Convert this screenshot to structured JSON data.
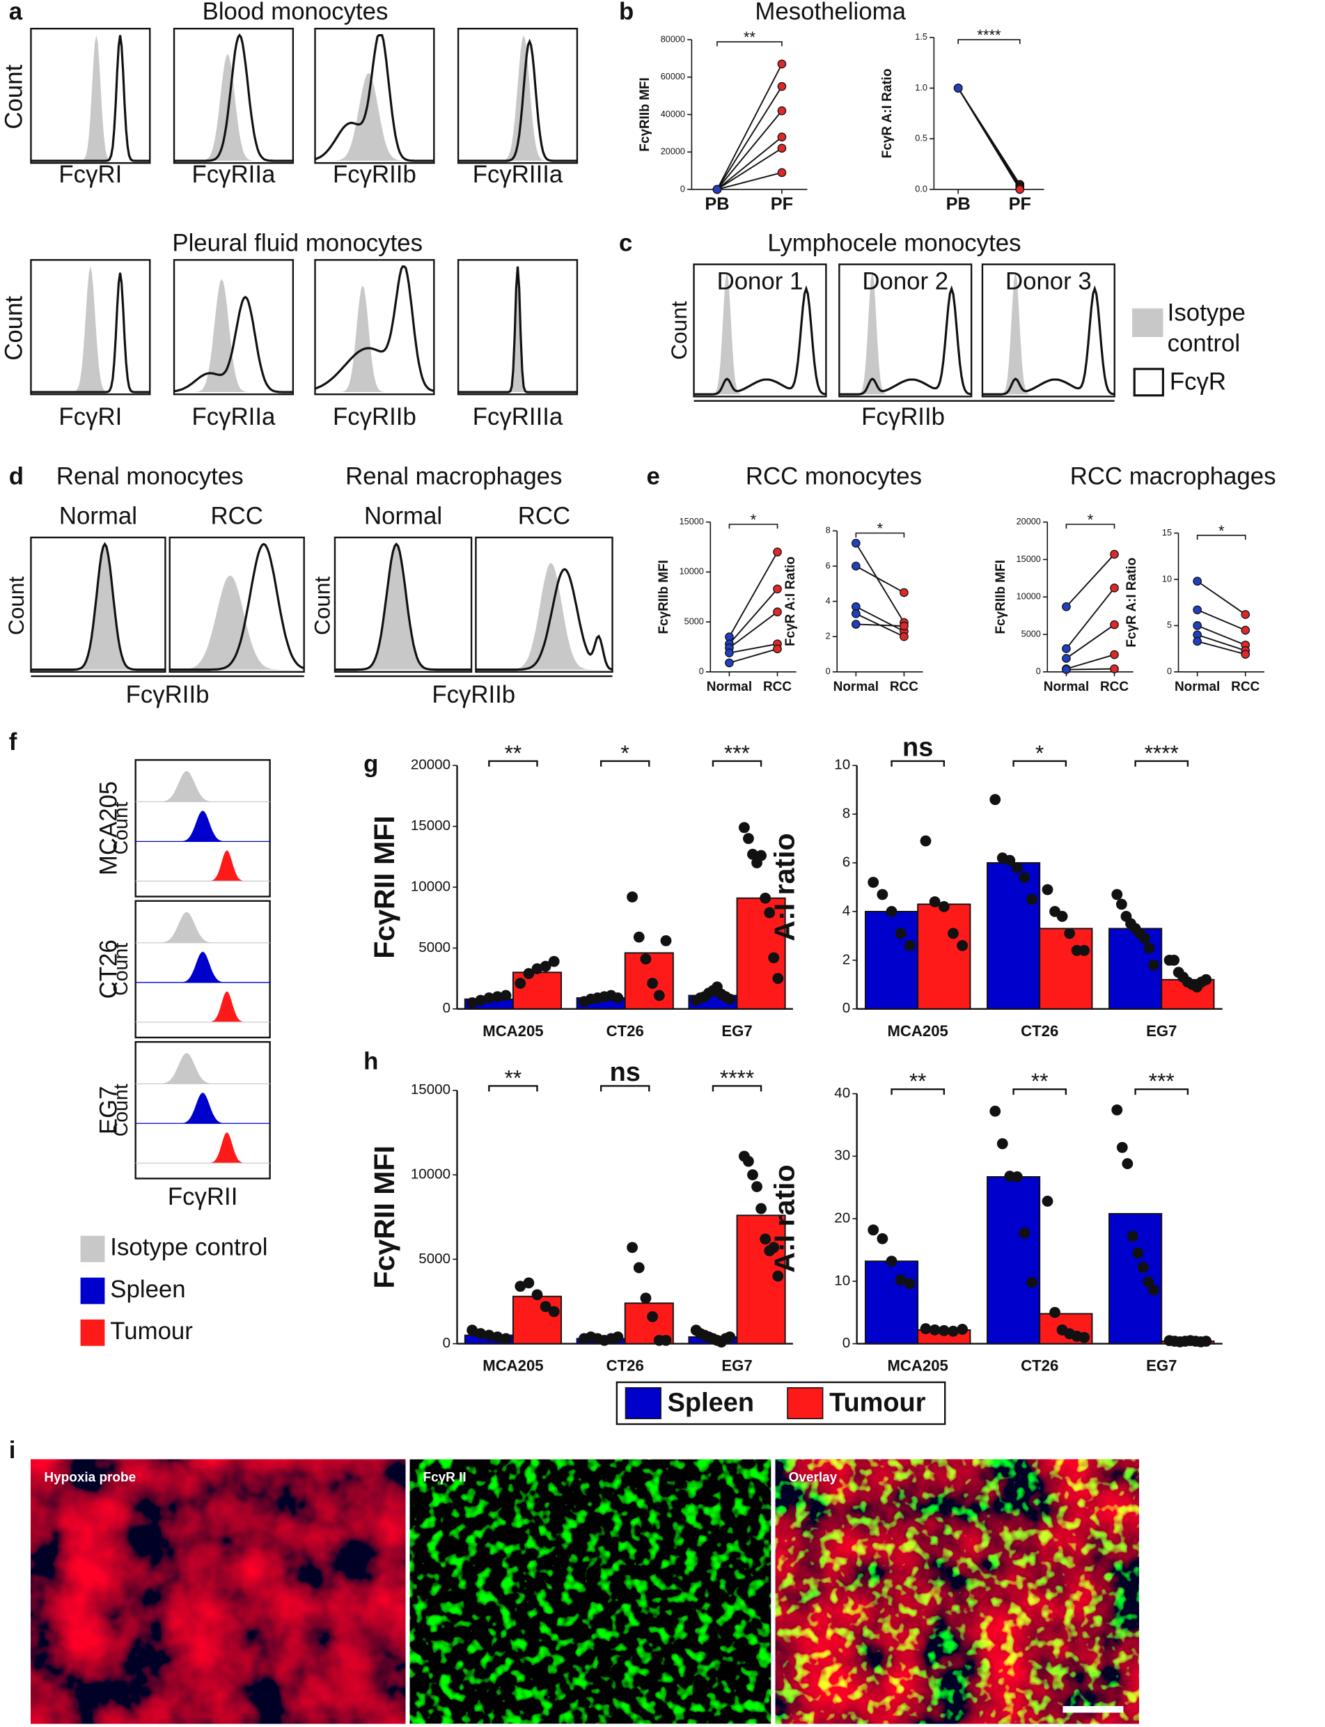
{
  "panel_labels": [
    "a",
    "b",
    "c",
    "d",
    "e",
    "f",
    "g",
    "h",
    "i"
  ],
  "a": {
    "titles": [
      "Blood monocytes",
      "Pleural fluid monocytes"
    ],
    "y_label": "Count",
    "markers": [
      "FcγRI",
      "FcγRIIa",
      "FcγRIIb",
      "FcγRIIIa"
    ]
  },
  "b": {
    "title": "Mesothelioma"
  },
  "c": {
    "title": "Lymphocele monocytes",
    "donors": [
      "Donor 1",
      "Donor 2",
      "Donor 3"
    ],
    "y_label": "Count",
    "x_label": "FcγRIIb",
    "legend": [
      "Isotype control",
      "FcγR"
    ]
  },
  "d": {
    "groups": [
      {
        "title": "Renal monocytes",
        "conditions": [
          "Normal",
          "RCC"
        ]
      },
      {
        "title": "Renal macrophages",
        "conditions": [
          "Normal",
          "RCC"
        ]
      }
    ],
    "y_label": "Count",
    "x_label": "FcγRIIb"
  },
  "e": {
    "titles": [
      "RCC monocytes",
      "RCC macrophages"
    ]
  },
  "f": {
    "models": [
      "MCA205",
      "CT26",
      "EG7"
    ],
    "y_label": "Count",
    "x_label": "FcγRII",
    "legend": [
      {
        "name": "Isotype control",
        "color": "#c8c8c8"
      },
      {
        "name": "Spleen",
        "color": "#0000cc"
      },
      {
        "name": "Tumour",
        "color": "#ff1a1a"
      }
    ]
  },
  "gh_legend": [
    {
      "name": "Spleen",
      "color": "#0000cc"
    },
    {
      "name": "Tumour",
      "color": "#ff1a1a"
    }
  ],
  "i": {
    "labels": [
      "Hypoxia probe",
      "FcγR II",
      "Overlay"
    ]
  },
  "chart_data": [
    {
      "type": "paired",
      "y_label": "FcγRIIb MFI",
      "categories": [
        "PB",
        "PF"
      ],
      "point_colors": [
        "#2040c0",
        "#e02828"
      ],
      "significance": "**",
      "ylim": [
        0,
        80000
      ],
      "yticks": [
        0,
        20000,
        40000,
        60000,
        80000
      ],
      "series": [
        {
          "values": [
            0,
            67000
          ]
        },
        {
          "values": [
            0,
            55000
          ]
        },
        {
          "values": [
            0,
            42000
          ]
        },
        {
          "values": [
            0,
            28000
          ]
        },
        {
          "values": [
            0,
            22000
          ]
        },
        {
          "values": [
            0,
            9000
          ]
        }
      ]
    },
    {
      "type": "paired",
      "y_label": "FcγR A:I Ratio",
      "categories": [
        "PB",
        "PF"
      ],
      "point_colors": [
        "#2040c0",
        "#e02828"
      ],
      "significance": "****",
      "ylim": [
        0,
        1.5
      ],
      "yticks": [
        {
          "value": 0,
          "label": "0.0"
        },
        0.5,
        {
          "value": 1,
          "label": "1.0"
        },
        1.5
      ],
      "series": [
        {
          "values": [
            1,
            0.05
          ]
        },
        {
          "values": [
            1,
            0.04
          ]
        },
        {
          "values": [
            1,
            0.03
          ]
        },
        {
          "values": [
            1,
            0.02
          ]
        },
        {
          "values": [
            1,
            0.01
          ]
        },
        {
          "values": [
            1,
            0
          ]
        }
      ]
    },
    {
      "type": "paired",
      "y_label": "FcγRIIb MFI",
      "categories": [
        "Normal",
        "RCC"
      ],
      "point_colors": [
        "#2040c0",
        "#e02828"
      ],
      "significance": "*",
      "ylim": [
        0,
        15000
      ],
      "yticks": [
        0,
        5000,
        10000,
        15000
      ],
      "series": [
        {
          "values": [
            3500,
            12000
          ]
        },
        {
          "values": [
            2800,
            8300
          ]
        },
        {
          "values": [
            2400,
            6000
          ]
        },
        {
          "values": [
            1900,
            2800
          ]
        },
        {
          "values": [
            900,
            2300
          ]
        }
      ]
    },
    {
      "type": "paired",
      "y_label": "FcγR A:I Ratio",
      "categories": [
        "Normal",
        "RCC"
      ],
      "point_colors": [
        "#2040c0",
        "#e02828"
      ],
      "significance": "*",
      "ylim": [
        0,
        8
      ],
      "yticks": [
        0,
        2,
        4,
        6,
        8
      ],
      "series": [
        {
          "values": [
            7.3,
            2.8
          ]
        },
        {
          "values": [
            6.0,
            4.5
          ]
        },
        {
          "values": [
            3.7,
            2.3
          ]
        },
        {
          "values": [
            3.3,
            2.0
          ]
        },
        {
          "values": [
            2.7,
            2.6
          ]
        }
      ]
    },
    {
      "type": "paired",
      "y_label": "FcγRIIb MFI",
      "categories": [
        "Normal",
        "RCC"
      ],
      "point_colors": [
        "#2040c0",
        "#e02828"
      ],
      "significance": "*",
      "ylim": [
        0,
        20000
      ],
      "yticks": [
        0,
        5000,
        10000,
        15000,
        20000
      ],
      "series": [
        {
          "values": [
            8700,
            15700
          ]
        },
        {
          "values": [
            3100,
            11200
          ]
        },
        {
          "values": [
            1800,
            6300
          ]
        },
        {
          "values": [
            400,
            2300
          ]
        },
        {
          "values": [
            300,
            400
          ]
        }
      ]
    },
    {
      "type": "paired",
      "y_label": "FcγR A:I Ratio",
      "categories": [
        "Normal",
        "RCC"
      ],
      "point_colors": [
        "#2040c0",
        "#e02828"
      ],
      "significance": "*",
      "ylim": [
        0,
        15
      ],
      "yticks": [
        0,
        5,
        10,
        15
      ],
      "series": [
        {
          "values": [
            9.8,
            6.2
          ]
        },
        {
          "values": [
            6.7,
            4.5
          ]
        },
        {
          "values": [
            5.0,
            2.9
          ]
        },
        {
          "values": [
            4.0,
            2.3
          ]
        },
        {
          "values": [
            3.3,
            1.9
          ]
        }
      ]
    },
    {
      "type": "bar_dots",
      "y_label": "FcγRII MFI",
      "categories": [
        "MCA205",
        "CT26",
        "EG7"
      ],
      "significance": [
        "**",
        "*",
        "***"
      ],
      "ylim": [
        0,
        20000
      ],
      "yticks": [
        0,
        5000,
        10000,
        15000,
        20000
      ],
      "series": [
        {
          "name": "Spleen",
          "color": "#0000cc",
          "values": [
            800,
            900,
            1100
          ],
          "points": [
            [
              500,
              700,
              900,
              1000,
              1100
            ],
            [
              600,
              800,
              900,
              1000,
              1100,
              900
            ],
            [
              700,
              900,
              1000,
              1300,
              1500,
              1800,
              1200,
              1000,
              800
            ]
          ]
        },
        {
          "name": "Tumour",
          "color": "#ff1a1a",
          "values": [
            3000,
            4600,
            9100
          ],
          "points": [
            [
              2100,
              2900,
              3300,
              3500,
              3900
            ],
            [
              9200,
              5900,
              4100,
              2100,
              1100,
              5600
            ],
            [
              14900,
              14000,
              12700,
              12000,
              12600,
              9100,
              7900,
              4200,
              2500
            ]
          ]
        }
      ]
    },
    {
      "type": "bar_dots",
      "y_label": "A:I ratio",
      "categories": [
        "MCA205",
        "CT26",
        "EG7"
      ],
      "significance": [
        "ns",
        "*",
        "****"
      ],
      "ylim": [
        0,
        10
      ],
      "yticks": [
        0,
        2,
        4,
        6,
        8,
        10
      ],
      "series": [
        {
          "name": "Spleen",
          "color": "#0000cc",
          "values": [
            4.0,
            6.0,
            3.3
          ],
          "points": [
            [
              5.2,
              4.7,
              4.0,
              3.1,
              2.6
            ],
            [
              8.6,
              6.2,
              6.1,
              5.8,
              5.4,
              4.5
            ],
            [
              4.7,
              4.3,
              3.8,
              3.5,
              3.3,
              3.1,
              2.9,
              2.5,
              1.8
            ]
          ]
        },
        {
          "name": "Tumour",
          "color": "#ff1a1a",
          "values": [
            4.3,
            3.3,
            1.2
          ],
          "points": [
            [
              6.9,
              4.4,
              4.2,
              3.1,
              2.6
            ],
            [
              4.9,
              4.0,
              3.8,
              3.1,
              2.4,
              2.4
            ],
            [
              2.0,
              2.0,
              1.5,
              1.3,
              1.1,
              1.0,
              0.9,
              1.1,
              1.2
            ]
          ]
        }
      ]
    },
    {
      "type": "bar_dots",
      "y_label": "FcγRII MFI",
      "categories": [
        "MCA205",
        "CT26",
        "EG7"
      ],
      "significance": [
        "**",
        "ns",
        "****"
      ],
      "ylim": [
        0,
        15000
      ],
      "yticks": [
        0,
        5000,
        10000,
        15000
      ],
      "series": [
        {
          "name": "Spleen",
          "color": "#0000cc",
          "values": [
            500,
            300,
            400
          ],
          "points": [
            [
              800,
              600,
              500,
              400,
              300
            ],
            [
              300,
              400,
              300,
              200,
              300,
              400
            ],
            [
              800,
              600,
              500,
              400,
              300,
              200,
              100,
              300,
              400
            ]
          ]
        },
        {
          "name": "Tumour",
          "color": "#ff1a1a",
          "values": [
            2800,
            2400,
            7600
          ],
          "points": [
            [
              3400,
              3600,
              2900,
              2200,
              1900
            ],
            [
              5700,
              4500,
              2700,
              1600,
              200,
              200
            ],
            [
              11100,
              10800,
              10000,
              9300,
              8000,
              6200,
              5500,
              5700,
              4000
            ]
          ]
        }
      ]
    },
    {
      "type": "bar_dots",
      "y_label": "A:I ratio",
      "categories": [
        "MCA205",
        "CT26",
        "EG7"
      ],
      "significance": [
        "**",
        "**",
        "***"
      ],
      "ylim": [
        0,
        40
      ],
      "yticks": [
        0,
        10,
        20,
        30,
        40
      ],
      "series": [
        {
          "name": "Spleen",
          "color": "#0000cc",
          "values": [
            13.2,
            26.7,
            20.8
          ],
          "points": [
            [
              18.2,
              16.8,
              13.2,
              10.2,
              9.6
            ],
            [
              37.2,
              32.0,
              26.8,
              26.7,
              17.7,
              9.8
            ],
            [
              37.4,
              31.4,
              28.8,
              17.2,
              14.5,
              12.2,
              9.9,
              8.6
            ]
          ]
        },
        {
          "name": "Tumour",
          "color": "#ff1a1a",
          "values": [
            2.2,
            4.8,
            0.4
          ],
          "points": [
            [
              2.4,
              2.2,
              2.1,
              2.0,
              2.3
            ],
            [
              22.8,
              5.0,
              2.2,
              1.6,
              1.2,
              1.0
            ],
            [
              0.5,
              0.4,
              0.3,
              0.4,
              0.5,
              0.4,
              0.3,
              0.4
            ]
          ]
        }
      ]
    }
  ]
}
